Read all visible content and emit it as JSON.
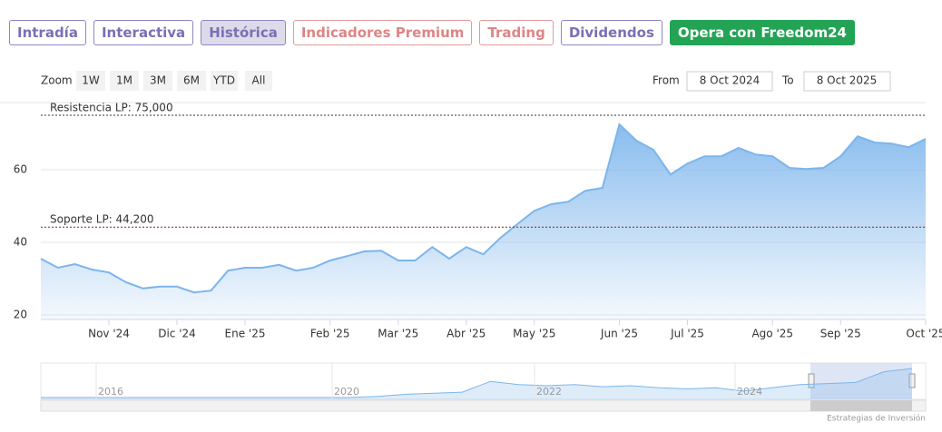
{
  "tabs": [
    "Intradía",
    "Interactiva",
    "Histórica",
    "Indicadores Premium",
    "Trading",
    "Dividendos"
  ],
  "cta": "Opera con Freedom24",
  "zoom": {
    "label": "Zoom",
    "buttons": [
      "1W",
      "1M",
      "3M",
      "6M",
      "YTD",
      "All"
    ]
  },
  "range": {
    "from_label": "From",
    "from": "8 Oct 2024",
    "to_label": "To",
    "to": "8 Oct 2025"
  },
  "credit": "Estrategias de Inversión",
  "chart_data": {
    "type": "area",
    "color": "#7cb5ec",
    "categories": [
      null,
      null,
      null,
      null,
      "Nov '24",
      null,
      null,
      null,
      "Dic '24",
      null,
      null,
      null,
      "Ene '25",
      null,
      null,
      null,
      null,
      "Feb '25",
      null,
      null,
      null,
      "Mar '25",
      null,
      null,
      null,
      "Abr '25",
      null,
      null,
      null,
      "May '25",
      null,
      null,
      null,
      null,
      "Jun '25",
      null,
      null,
      null,
      "Jul '25",
      null,
      null,
      null,
      null,
      "Ago '25",
      null,
      null,
      null,
      "Sep '25",
      null,
      null,
      null,
      null,
      "Oct '25"
    ],
    "values": [
      35.5,
      33,
      34,
      32.5,
      31.7,
      29,
      27.3,
      27.8,
      27.8,
      26.2,
      26.7,
      32.2,
      33,
      33,
      33.8,
      32.2,
      33,
      35,
      36.2,
      37.5,
      37.7,
      35,
      35,
      38.7,
      35.5,
      38.7,
      36.7,
      41.2,
      45,
      48.7,
      50.5,
      51.2,
      54.2,
      55,
      72.5,
      68,
      65.5,
      58.7,
      61.7,
      63.7,
      63.7,
      66,
      64.2,
      63.7,
      60.5,
      60.2,
      60.5,
      63.7,
      69.2,
      67.5,
      67.2,
      66.2,
      68.5
    ],
    "ylim": [
      18.75,
      78.5
    ],
    "yticks": [
      20,
      40,
      60
    ],
    "grid": true,
    "plot_lines": [
      {
        "value": 75,
        "label": "Resistencia LP: 75,000",
        "color": "#333333"
      },
      {
        "value": 44.2,
        "label": "Soporte LP: 44,200",
        "color": "#8b1a1a"
      }
    ],
    "navigator": {
      "labels": [
        "2016",
        "2020",
        "2022",
        "2024"
      ],
      "values": [
        3,
        3,
        3,
        3,
        3,
        3,
        3,
        3,
        3,
        3,
        3,
        3,
        4,
        6,
        7,
        8,
        18,
        15,
        14,
        15,
        13,
        14,
        12,
        11,
        12,
        9,
        12,
        15,
        16,
        17,
        27,
        30
      ]
    }
  }
}
